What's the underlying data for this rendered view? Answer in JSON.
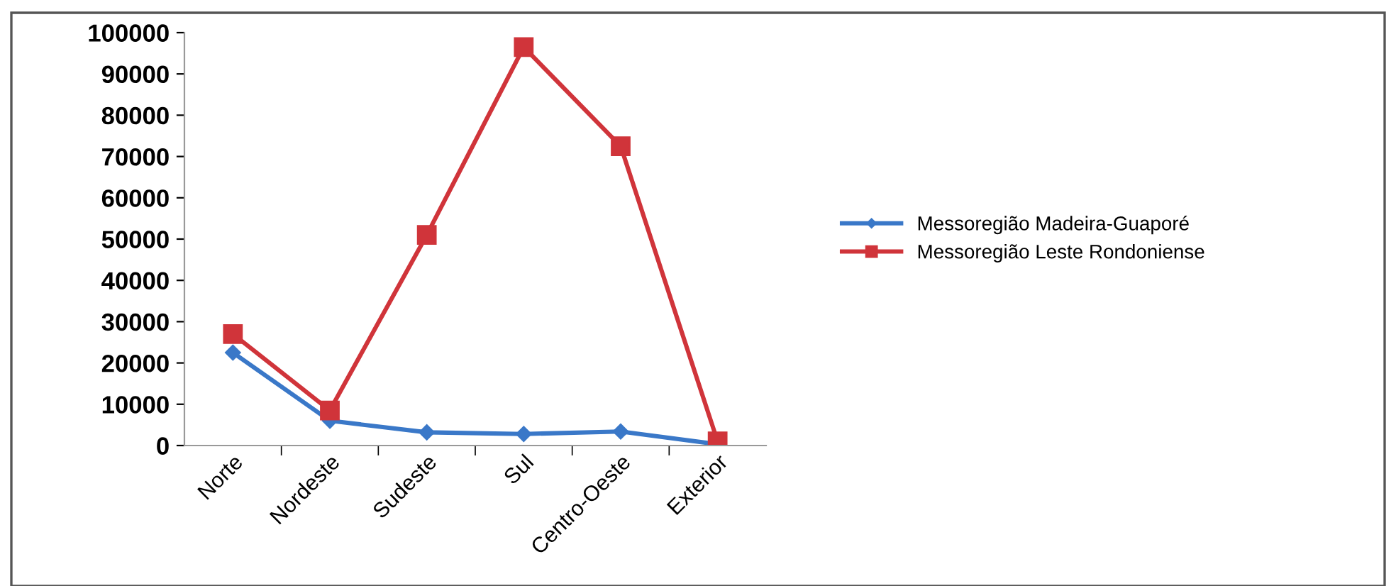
{
  "chart_data": {
    "type": "line",
    "categories": [
      "Norte",
      "Nordeste",
      "Sudeste",
      "Sul",
      "Centro-Oeste",
      "Exterior"
    ],
    "series": [
      {
        "name": "Messoregião Madeira-Guaporé",
        "color": "#3a78c8",
        "marker": "diamond",
        "values": [
          22500,
          6000,
          3200,
          2800,
          3400,
          300
        ]
      },
      {
        "name": "Messoregião Leste Rondoniense",
        "color": "#d0343a",
        "marker": "square",
        "values": [
          27000,
          8500,
          51000,
          96500,
          72500,
          1000
        ]
      }
    ],
    "ylim": [
      0,
      100000
    ],
    "yticks": [
      0,
      10000,
      20000,
      30000,
      40000,
      50000,
      60000,
      70000,
      80000,
      90000,
      100000
    ],
    "grid": false,
    "legend": "right"
  }
}
